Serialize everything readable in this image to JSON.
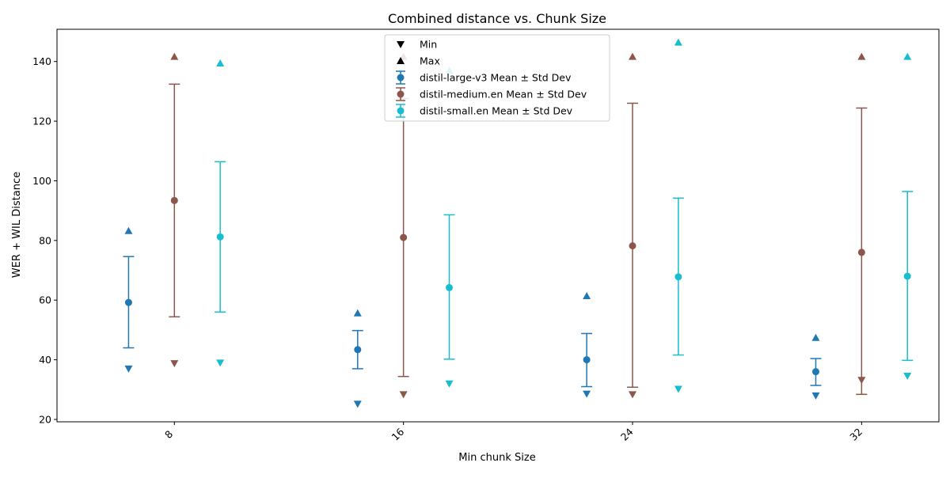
{
  "chart_data": {
    "type": "scatter",
    "title": "Combined distance vs. Chunk Size",
    "xlabel": "Min chunk Size",
    "ylabel": "WER + WIL Distance",
    "x_ticks": [
      8,
      16,
      24,
      32
    ],
    "x_tick_labels": [
      "8",
      "16",
      "24",
      "32"
    ],
    "xlim": [
      3.9,
      34.7
    ],
    "ylim": [
      19.2,
      150.8
    ],
    "y_ticks": [
      20,
      40,
      60,
      80,
      100,
      120,
      140
    ],
    "y_tick_labels": [
      "20",
      "40",
      "60",
      "80",
      "100",
      "120",
      "140"
    ],
    "grid": false,
    "legend_position": "upper center",
    "legend": [
      {
        "label": "Min",
        "marker": "triangle-down",
        "color": "#000000"
      },
      {
        "label": "Max",
        "marker": "triangle-up",
        "color": "#000000"
      },
      {
        "label": "distil-large-v3 Mean ± Std Dev",
        "marker": "errorbar",
        "color": "#1f77b4"
      },
      {
        "label": "distil-medium.en Mean ± Std Dev",
        "marker": "errorbar",
        "color": "#8c564b"
      },
      {
        "label": "distil-small.en Mean ± Std Dev",
        "marker": "errorbar",
        "color": "#17becf"
      }
    ],
    "series": [
      {
        "name": "distil-large-v3",
        "color": "#1f77b4",
        "x": [
          6.4,
          14.4,
          22.4,
          30.4
        ],
        "mean": [
          59.2,
          43.4,
          40.0,
          36.0
        ],
        "std_low": [
          44.0,
          37.0,
          31.0,
          31.4
        ],
        "std_high": [
          74.6,
          49.8,
          48.8,
          40.4
        ],
        "min": [
          37.0,
          25.2,
          28.6,
          28.0
        ],
        "max": [
          83.2,
          55.6,
          61.4,
          47.4
        ]
      },
      {
        "name": "distil-medium.en",
        "color": "#8c564b",
        "x": [
          8.0,
          16.0,
          24.0,
          32.0
        ],
        "mean": [
          93.4,
          81.0,
          78.2,
          76.0
        ],
        "std_low": [
          54.4,
          34.4,
          30.8,
          28.4
        ],
        "std_high": [
          132.4,
          127.6,
          126.0,
          124.4
        ],
        "min": [
          38.8,
          28.4,
          28.4,
          33.2
        ],
        "max": [
          141.6,
          141.6,
          141.6,
          141.6
        ]
      },
      {
        "name": "distil-small.en",
        "color": "#17becf",
        "x": [
          9.6,
          17.6,
          25.6,
          33.6
        ],
        "mean": [
          81.2,
          64.2,
          67.8,
          68.0
        ],
        "std_low": [
          56.0,
          40.2,
          41.6,
          39.8
        ],
        "std_high": [
          106.4,
          88.6,
          94.2,
          96.4
        ],
        "min": [
          39.0,
          32.0,
          30.2,
          34.6
        ],
        "max": [
          139.4,
          137.0,
          146.4,
          141.6
        ]
      }
    ]
  }
}
